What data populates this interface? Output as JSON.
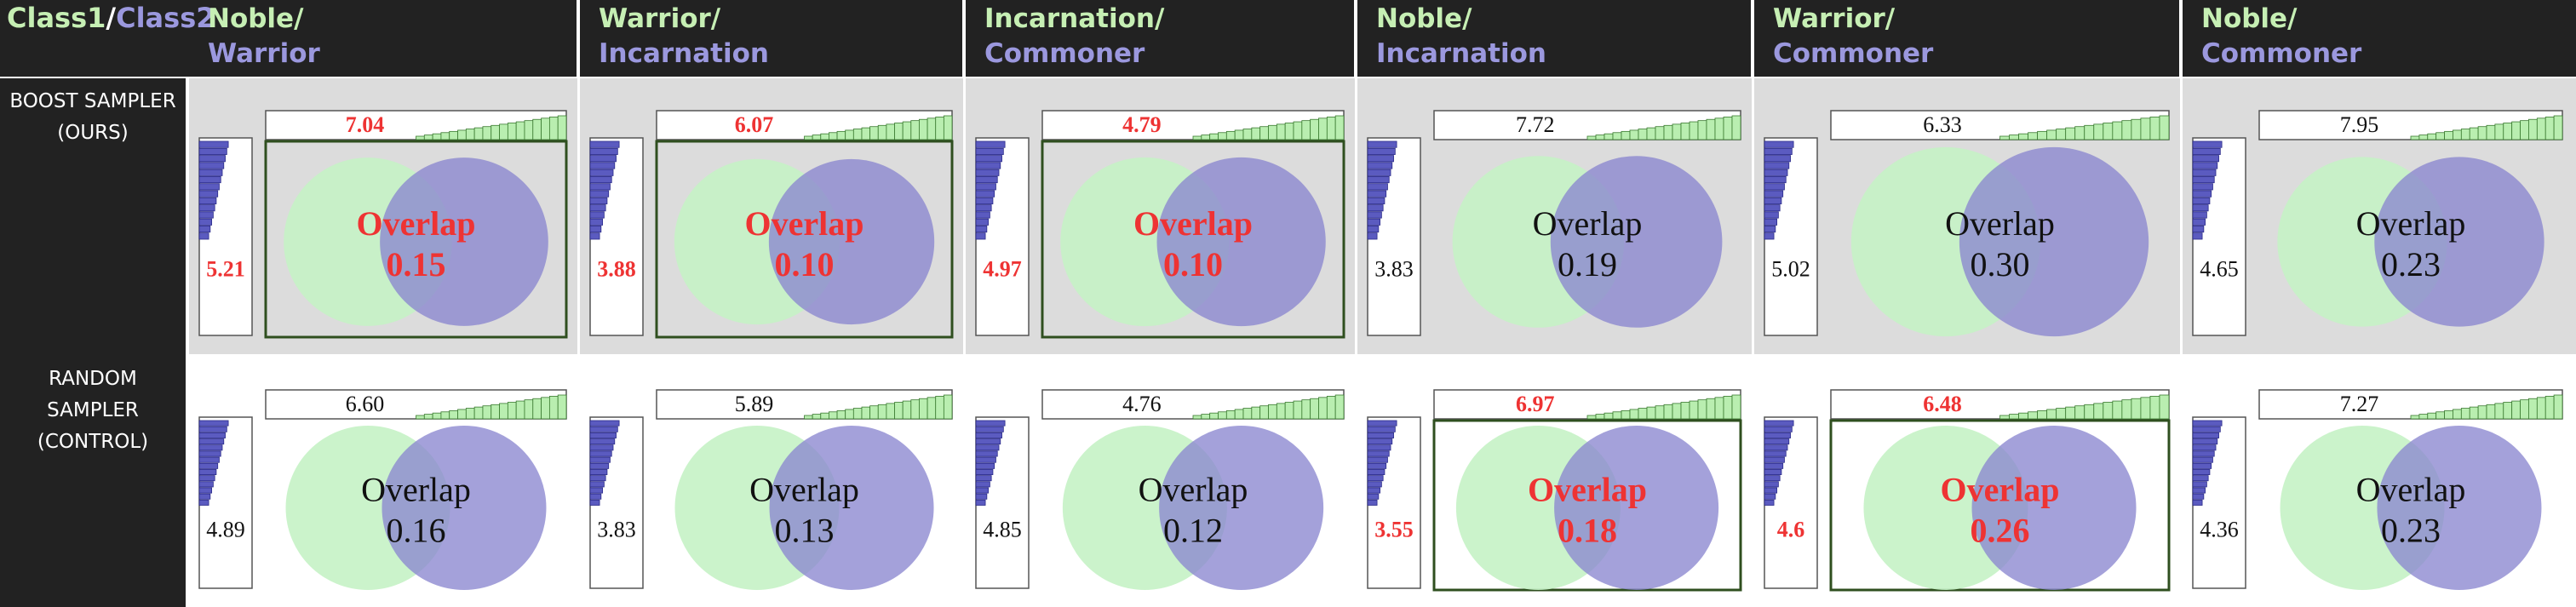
{
  "header": {
    "corner": {
      "class1": "Class1",
      "sep": "/",
      "class2": "Class2"
    },
    "columns": [
      {
        "class1": "Noble/",
        "class2": "Warrior"
      },
      {
        "class1": "Warrior/",
        "class2": "Incarnation"
      },
      {
        "class1": "Incarnation/",
        "class2": "Commoner"
      },
      {
        "class1": "Noble/",
        "class2": "Incarnation"
      },
      {
        "class1": "Warrior/",
        "class2": "Commoner"
      },
      {
        "class1": "Noble/",
        "class2": "Commoner"
      }
    ]
  },
  "rows": [
    {
      "label": [
        "BOOST SAMPLER",
        "(OURS)"
      ],
      "cells": [
        {
          "top": "7.04",
          "left": "5.21",
          "overlap_label": "Overlap",
          "overlap": "0.15",
          "highlight": true
        },
        {
          "top": "6.07",
          "left": "3.88",
          "overlap_label": "Overlap",
          "overlap": "0.10",
          "highlight": true
        },
        {
          "top": "4.79",
          "left": "4.97",
          "overlap_label": "Overlap",
          "overlap": "0.10",
          "highlight": true
        },
        {
          "top": "7.72",
          "left": "3.83",
          "overlap_label": "Overlap",
          "overlap": "0.19",
          "highlight": false
        },
        {
          "top": "6.33",
          "left": "5.02",
          "overlap_label": "Overlap",
          "overlap": "0.30",
          "highlight": false
        },
        {
          "top": "7.95",
          "left": "4.65",
          "overlap_label": "Overlap",
          "overlap": "0.23",
          "highlight": false
        }
      ]
    },
    {
      "label": [
        "RANDOM",
        "SAMPLER",
        "(CONTROL)"
      ],
      "cells": [
        {
          "top": "6.60",
          "left": "4.89",
          "overlap_label": "Overlap",
          "overlap": "0.16",
          "highlight": false
        },
        {
          "top": "5.89",
          "left": "3.83",
          "overlap_label": "Overlap",
          "overlap": "0.13",
          "highlight": false
        },
        {
          "top": "4.76",
          "left": "4.85",
          "overlap_label": "Overlap",
          "overlap": "0.12",
          "highlight": false
        },
        {
          "top": "6.97",
          "left": "3.55",
          "overlap_label": "Overlap",
          "overlap": "0.18",
          "highlight": true
        },
        {
          "top": "6.48",
          "left": "4.6",
          "overlap_label": "Overlap",
          "overlap": "0.26",
          "highlight": true
        },
        {
          "top": "7.27",
          "left": "4.36",
          "overlap_label": "Overlap",
          "overlap": "0.23",
          "highlight": false
        }
      ]
    }
  ],
  "colors": {
    "header_bg": "#222222",
    "class1": "#c6efb4",
    "class2": "#9b98de",
    "row1_bg": "#dcdcdc",
    "highlight_text": "#ee3333",
    "normal_text": "#111111",
    "venn_green": "#c5f2c5",
    "venn_purple": "#8b87cf",
    "venn_frame": "#2f4f1f",
    "hist_blue": "#5b5bc0",
    "hist_green": "#b9eeb0"
  }
}
